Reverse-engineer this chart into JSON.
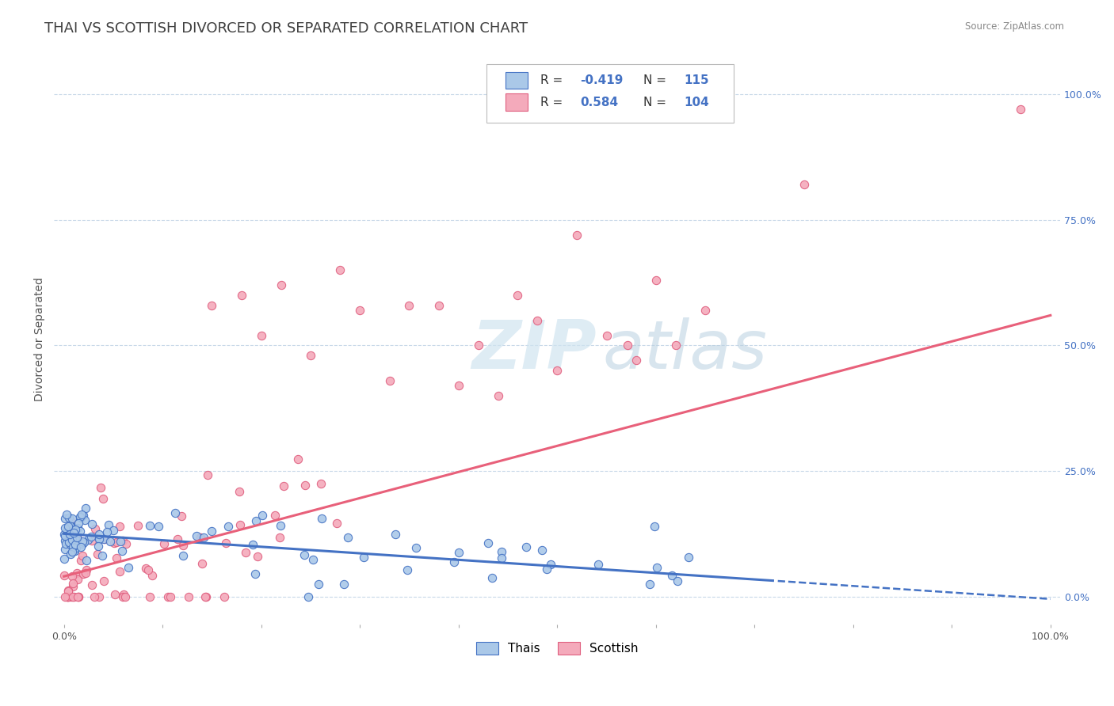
{
  "title": "THAI VS SCOTTISH DIVORCED OR SEPARATED CORRELATION CHART",
  "source": "Source: ZipAtlas.com",
  "ylabel": "Divorced or Separated",
  "right_ytick_labels": [
    "0.0%",
    "25.0%",
    "50.0%",
    "75.0%",
    "100.0%"
  ],
  "right_ytick_values": [
    0.0,
    0.25,
    0.5,
    0.75,
    1.0
  ],
  "legend_labels": [
    "Thais",
    "Scottish"
  ],
  "R_thai": -0.419,
  "N_thai": 115,
  "R_scottish": 0.584,
  "N_scottish": 104,
  "color_thai_fill": "#aac8e8",
  "color_scottish_fill": "#f4aabb",
  "color_thai_edge": "#4472c4",
  "color_scottish_edge": "#e06080",
  "color_thai_line": "#4472c4",
  "color_scottish_line": "#e8607a",
  "color_title": "#404040",
  "bg_color": "#ffffff",
  "grid_color": "#c8d8e8",
  "title_fontsize": 13,
  "axis_label_fontsize": 10,
  "tick_fontsize": 9,
  "legend_fontsize": 11,
  "thai_intercept": 0.125,
  "thai_slope": -0.13,
  "scot_intercept": 0.04,
  "scot_slope": 0.52
}
